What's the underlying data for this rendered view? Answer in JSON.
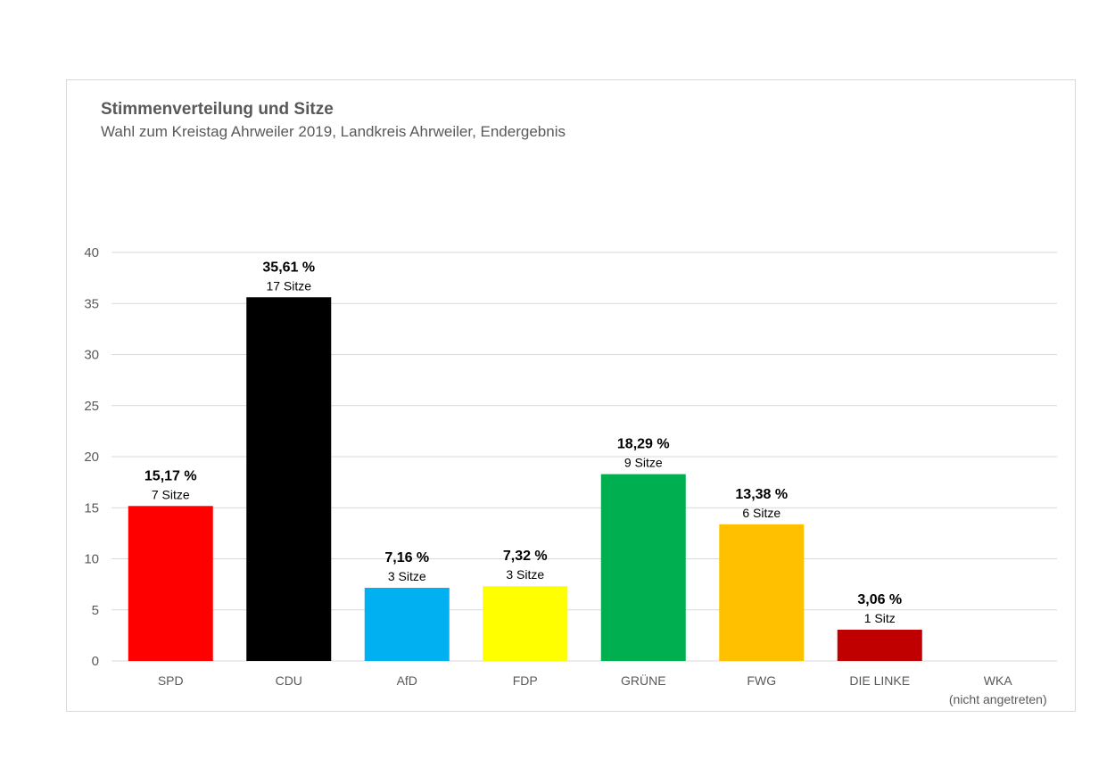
{
  "chart_data": {
    "type": "bar",
    "title": "Stimmenverteilung und Sitze",
    "subtitle": "Wahl zum Kreistag Ahrweiler 2019, Landkreis Ahrweiler, Endergebnis",
    "xlabel": "",
    "ylabel": "",
    "ylim": [
      0,
      40
    ],
    "yticks": [
      0,
      5,
      10,
      15,
      20,
      25,
      30,
      35,
      40
    ],
    "grid": true,
    "categories": [
      "SPD",
      "CDU",
      "AfD",
      "FDP",
      "GRÜNE",
      "FWG",
      "DIE LINKE",
      "WKA"
    ],
    "category_notes": [
      "",
      "",
      "",
      "",
      "",
      "",
      "",
      "(nicht angetreten)"
    ],
    "values": [
      15.17,
      35.61,
      7.16,
      7.32,
      18.29,
      13.38,
      3.06,
      null
    ],
    "pct_labels": [
      "15,17 %",
      "35,61 %",
      "7,16 %",
      "7,32 %",
      "18,29 %",
      "13,38 %",
      "3,06 %",
      ""
    ],
    "seat_labels": [
      "7 Sitze",
      "17 Sitze",
      "3 Sitze",
      "3 Sitze",
      "9 Sitze",
      "6 Sitze",
      "1 Sitz",
      ""
    ],
    "colors": [
      "#ff0000",
      "#000000",
      "#00b0f0",
      "#ffff00",
      "#00b050",
      "#ffc000",
      "#c00000",
      "#ffffff"
    ]
  }
}
